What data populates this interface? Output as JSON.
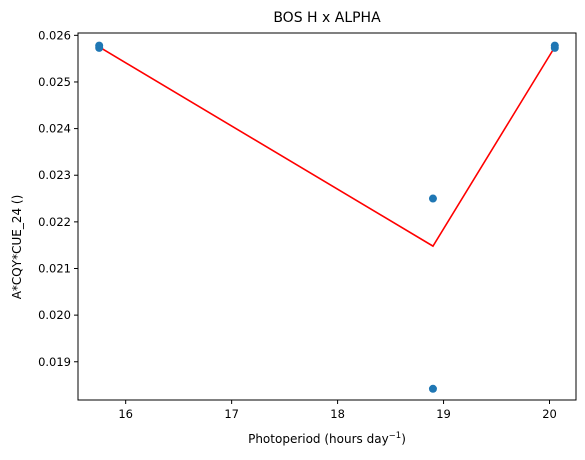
{
  "chart_data": {
    "type": "scatter",
    "title": "BOS H x ALPHA",
    "xlabel_main": "Photoperiod (hours day",
    "xlabel_sup": "−1",
    "xlabel_end": ")",
    "ylabel": "A*CQY*CUE_24 ()",
    "xlim": [
      15.55,
      20.25
    ],
    "ylim": [
      0.01818,
      0.02605
    ],
    "xticks": [
      16,
      17,
      18,
      19,
      20
    ],
    "xtick_labels": [
      "16",
      "17",
      "18",
      "19",
      "20"
    ],
    "yticks": [
      0.019,
      0.02,
      0.021,
      0.022,
      0.023,
      0.024,
      0.025,
      0.026
    ],
    "ytick_labels": [
      "0.019",
      "0.020",
      "0.021",
      "0.022",
      "0.023",
      "0.024",
      "0.025",
      "0.026"
    ],
    "grid": false,
    "points": {
      "x": [
        15.75,
        15.75,
        18.9,
        18.9,
        20.05,
        20.05
      ],
      "y": [
        0.02578,
        0.02573,
        0.0225,
        0.01842,
        0.02578,
        0.02573
      ],
      "color": "#1f77b4"
    },
    "fit_line": {
      "x": [
        15.75,
        18.9,
        20.05
      ],
      "y": [
        0.02575,
        0.02148,
        0.02575
      ],
      "color": "#ff0000"
    }
  }
}
